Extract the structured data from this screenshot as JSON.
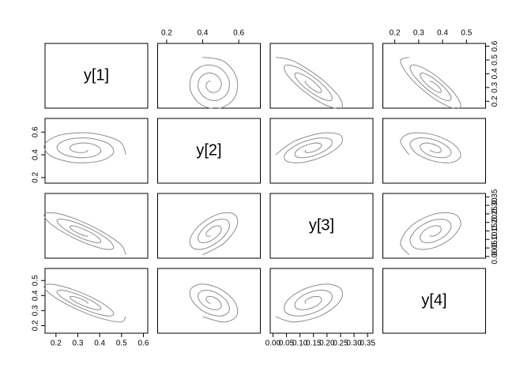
{
  "chart_data": {
    "type": "pairs",
    "color": "#8c8c8c",
    "variables": [
      {
        "name": "y[1]",
        "lim": [
          0.15,
          0.62
        ],
        "ticks": [
          0.2,
          0.3,
          0.4,
          0.5,
          0.6
        ],
        "values": [
          0.52,
          0.49,
          0.366,
          0.226,
          0.149,
          0.175,
          0.281,
          0.4,
          0.462,
          0.44,
          0.352,
          0.256,
          0.206,
          0.226,
          0.295,
          0.369,
          0.405,
          0.389,
          0.338,
          0.286,
          0.264,
          0.276,
          0.31,
          0.338,
          0.347
        ]
      },
      {
        "name": "y[2]",
        "lim": [
          0.15,
          0.72
        ],
        "ticks": [
          0.2,
          0.4,
          0.6
        ],
        "values": [
          0.4,
          0.518,
          0.589,
          0.577,
          0.493,
          0.392,
          0.332,
          0.345,
          0.414,
          0.498,
          0.546,
          0.535,
          0.478,
          0.413,
          0.376,
          0.385,
          0.429,
          0.477,
          0.503,
          0.494,
          0.464,
          0.433,
          0.419,
          0.426,
          0.443
        ]
      },
      {
        "name": "y[3]",
        "lim": [
          -0.01,
          0.37
        ],
        "ticks": [
          {
            "value": 0,
            "label": "0.00"
          },
          {
            "value": 0.05,
            "label": "0.05"
          },
          {
            "value": 0.1,
            "label": "0.10"
          },
          {
            "value": 0.15,
            "label": "0.15"
          },
          {
            "value": 0.2,
            "label": "0.20"
          },
          {
            "value": 0.25,
            "label": "0.25"
          },
          {
            "value": 0.3,
            "label": "0.30"
          },
          {
            "value": 0.35,
            "label": "0.35"
          }
        ],
        "values": [
          0.01,
          0.078,
          0.177,
          0.247,
          0.251,
          0.192,
          0.109,
          0.05,
          0.047,
          0.097,
          0.166,
          0.213,
          0.214,
          0.174,
          0.12,
          0.085,
          0.085,
          0.115,
          0.154,
          0.178,
          0.176,
          0.155,
          0.132,
          0.119,
          0.122
        ]
      },
      {
        "name": "y[4]",
        "lim": [
          0.15,
          0.58
        ],
        "ticks": [
          0.2,
          0.3,
          0.4,
          0.5
        ],
        "values": [
          0.26,
          0.224,
          0.267,
          0.36,
          0.446,
          0.476,
          0.438,
          0.36,
          0.289,
          0.264,
          0.296,
          0.36,
          0.417,
          0.436,
          0.41,
          0.36,
          0.318,
          0.306,
          0.325,
          0.36,
          0.388,
          0.394,
          0.381,
          0.36,
          0.346
        ]
      }
    ]
  }
}
